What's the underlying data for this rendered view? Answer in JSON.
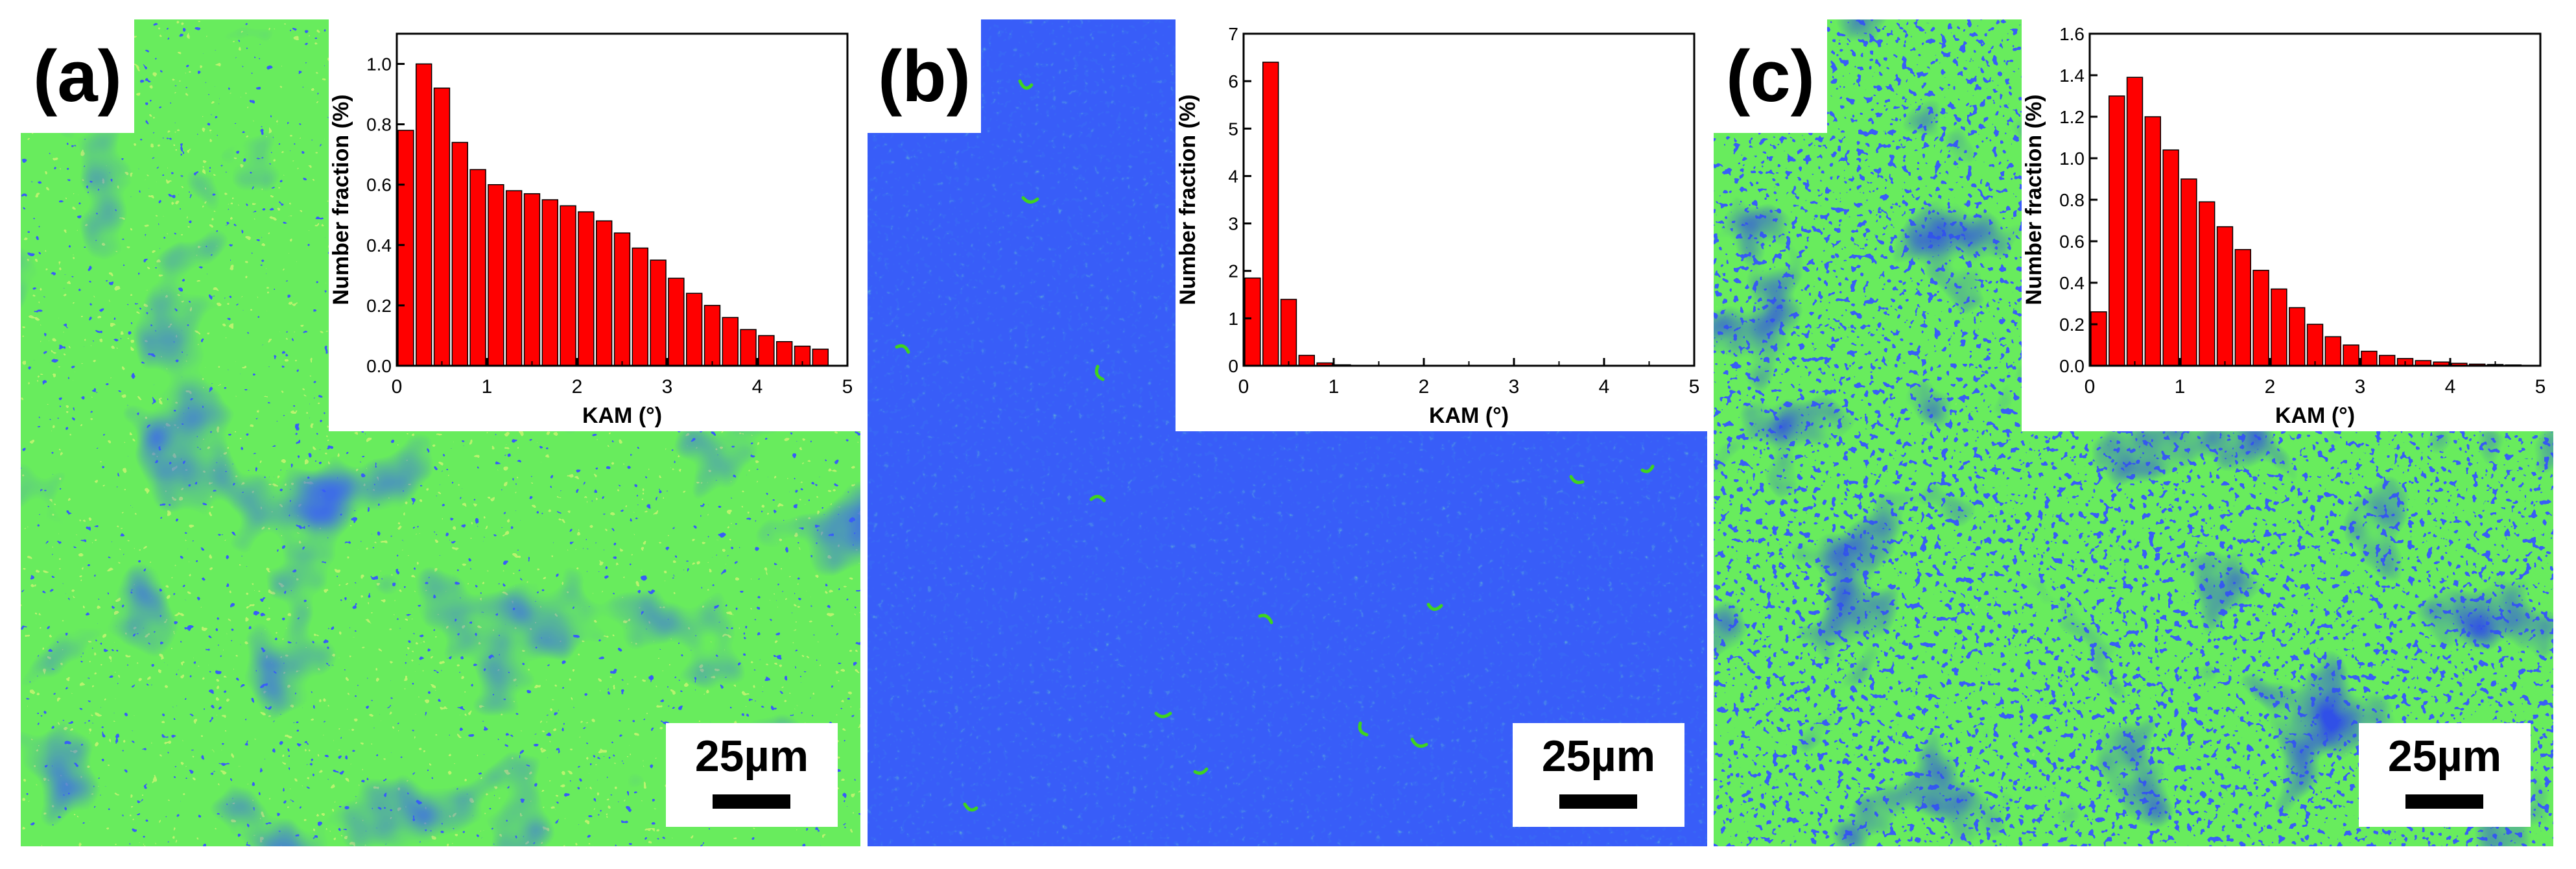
{
  "palette": {
    "blue": "#0a1cf0",
    "blue_dark": "#0714b4",
    "green": "#23d61c",
    "green_light": "#7ee22a",
    "yellow": "#e6e619",
    "red": "#ff0000"
  },
  "chart_data": [
    {
      "type": "bar",
      "panel_label": "(a)",
      "scale_bar": "25µm",
      "xlabel": "KAM (°)",
      "ylabel": "Number fraction (%)",
      "xlim": [
        0,
        5
      ],
      "ylim": [
        0,
        1.1
      ],
      "xticks": [
        "0",
        "1",
        "2",
        "3",
        "4",
        "5"
      ],
      "yticks": [
        "0.0",
        "0.2",
        "0.4",
        "0.6",
        "0.8",
        "1.0"
      ],
      "bin_width": 0.2,
      "x": [
        0.1,
        0.3,
        0.5,
        0.7,
        0.9,
        1.1,
        1.3,
        1.5,
        1.7,
        1.9,
        2.1,
        2.3,
        2.5,
        2.7,
        2.9,
        3.1,
        3.3,
        3.5,
        3.7,
        3.9,
        4.1,
        4.3,
        4.5,
        4.7
      ],
      "values": [
        0.78,
        1.0,
        0.92,
        0.74,
        0.65,
        0.6,
        0.58,
        0.57,
        0.55,
        0.53,
        0.51,
        0.48,
        0.44,
        0.39,
        0.35,
        0.29,
        0.24,
        0.2,
        0.16,
        0.12,
        0.1,
        0.08,
        0.065,
        0.055
      ]
    },
    {
      "type": "bar",
      "panel_label": "(b)",
      "scale_bar": "25µm",
      "xlabel": "KAM (°)",
      "ylabel": "Number fraction (%)",
      "xlim": [
        0,
        5
      ],
      "ylim": [
        0,
        7
      ],
      "xticks": [
        "0",
        "1",
        "2",
        "3",
        "4",
        "5"
      ],
      "yticks": [
        "0",
        "1",
        "2",
        "3",
        "4",
        "5",
        "6",
        "7"
      ],
      "bin_width": 0.2,
      "x": [
        0.1,
        0.3,
        0.5,
        0.7,
        0.9,
        1.1
      ],
      "values": [
        1.85,
        6.4,
        1.4,
        0.22,
        0.06,
        0.02
      ]
    },
    {
      "type": "bar",
      "panel_label": "(c)",
      "scale_bar": "25µm",
      "xlabel": "KAM (°)",
      "ylabel": "Number fraction (%)",
      "xlim": [
        0,
        5
      ],
      "ylim": [
        0,
        1.6
      ],
      "xticks": [
        "0",
        "1",
        "2",
        "3",
        "4",
        "5"
      ],
      "yticks": [
        "0.0",
        "0.2",
        "0.4",
        "0.6",
        "0.8",
        "1.0",
        "1.2",
        "1.4",
        "1.6"
      ],
      "bin_width": 0.2,
      "x": [
        0.1,
        0.3,
        0.5,
        0.7,
        0.9,
        1.1,
        1.3,
        1.5,
        1.7,
        1.9,
        2.1,
        2.3,
        2.5,
        2.7,
        2.9,
        3.1,
        3.3,
        3.5,
        3.7,
        3.9,
        4.1,
        4.3,
        4.5,
        4.7
      ],
      "values": [
        0.26,
        1.3,
        1.39,
        1.2,
        1.04,
        0.9,
        0.79,
        0.67,
        0.56,
        0.46,
        0.37,
        0.28,
        0.2,
        0.14,
        0.1,
        0.07,
        0.05,
        0.035,
        0.025,
        0.018,
        0.012,
        0.008,
        0.006,
        0.004
      ]
    }
  ]
}
